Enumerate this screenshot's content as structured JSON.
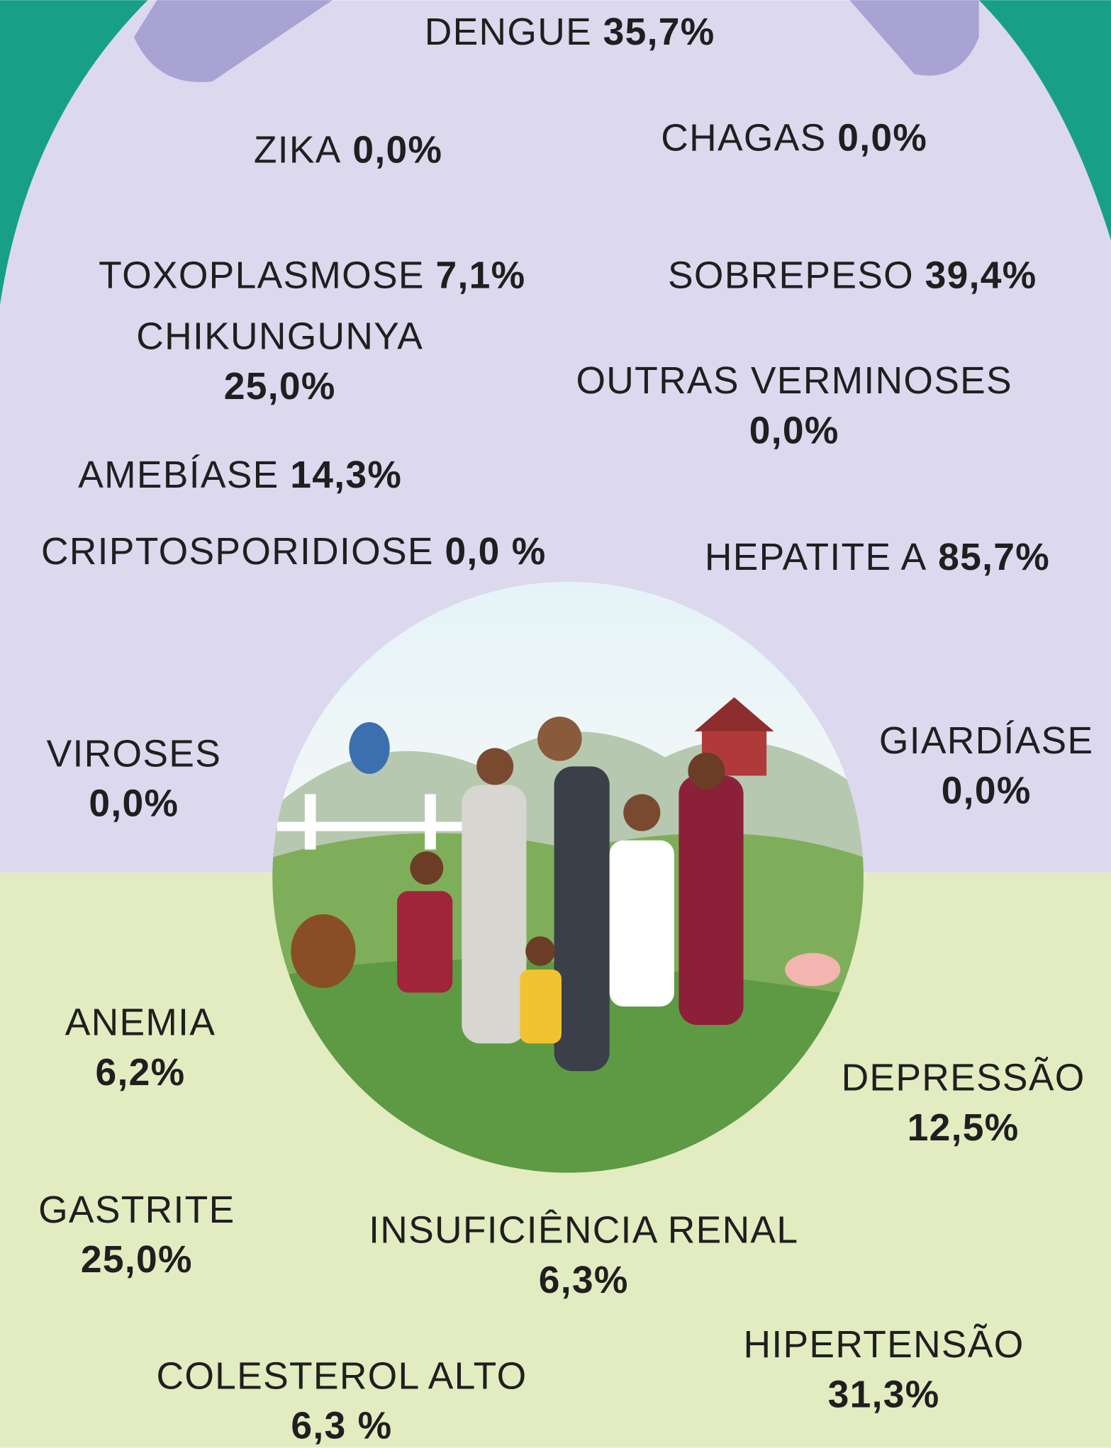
{
  "items": [
    {
      "name": "DENGUE",
      "value": "35,7%"
    },
    {
      "name": "ZIKA",
      "value": "0,0%"
    },
    {
      "name": "CHAGAS",
      "value": "0,0%"
    },
    {
      "name": "TOXOPLASMOSE",
      "value": "7,1%"
    },
    {
      "name": "SOBREPESO",
      "value": "39,4%"
    },
    {
      "name": "CHIKUNGUNYA",
      "value": "25,0%"
    },
    {
      "name": "OUTRAS VERMINOSES",
      "value": "0,0%"
    },
    {
      "name": "AMEBÍASE",
      "value": "14,3%"
    },
    {
      "name": "CRIPTOSPORIDIOSE",
      "value": "0,0 %"
    },
    {
      "name": "HEPATITE A",
      "value": "85,7%"
    },
    {
      "name": "VIROSES",
      "value": "0,0%"
    },
    {
      "name": "GIARDÍASE",
      "value": "0,0%"
    },
    {
      "name": "ANEMIA",
      "value": "6,2%"
    },
    {
      "name": "DEPRESSÃO",
      "value": "12,5%"
    },
    {
      "name": "GASTRITE",
      "value": "25,0%"
    },
    {
      "name": "INSUFICIÊNCIA RENAL",
      "value": "6,3%"
    },
    {
      "name": "HIPERTENSÃO",
      "value": "31,3%"
    },
    {
      "name": "COLESTEROL ALTO",
      "value": "6,3 %"
    }
  ]
}
